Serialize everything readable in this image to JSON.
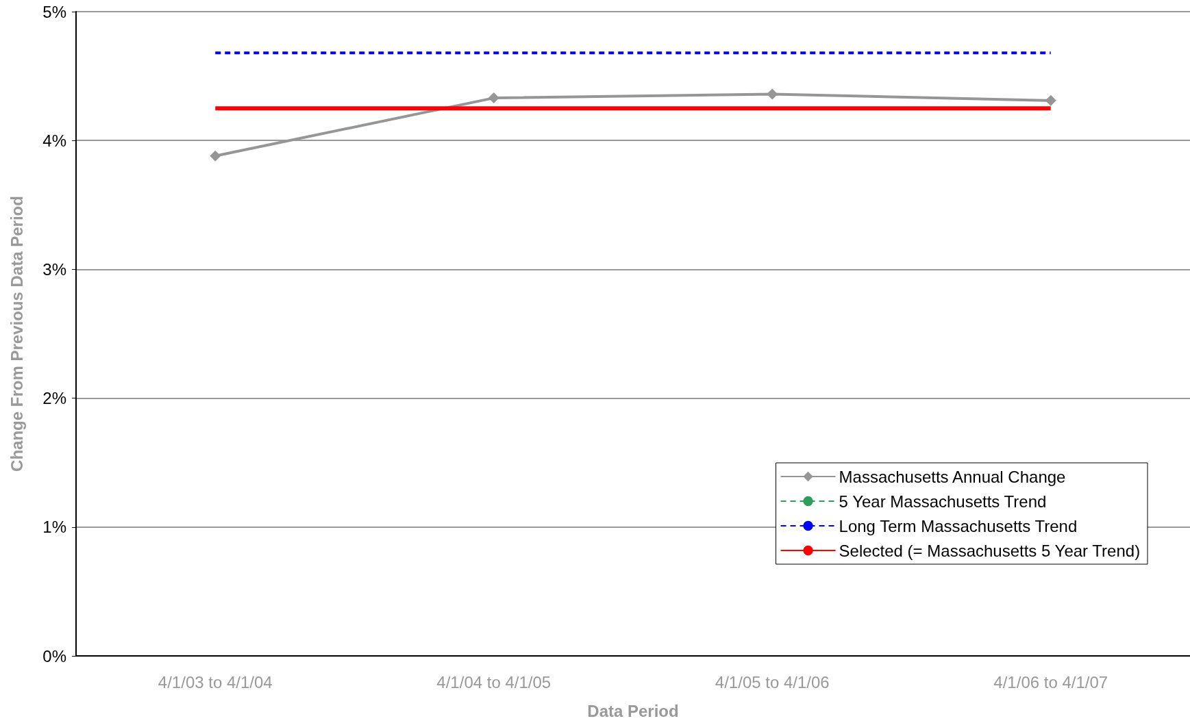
{
  "chart_data": {
    "type": "line",
    "xlabel": "Data Period",
    "ylabel": "Change From Previous Data Period",
    "categories": [
      "4/1/03 to 4/1/04",
      "4/1/04 to 4/1/05",
      "4/1/05 to 4/1/06",
      "4/1/06 to 4/1/07"
    ],
    "series": [
      {
        "name": "Massachusetts Annual Change",
        "color": "#969696",
        "values": [
          3.88,
          4.33,
          4.36,
          4.31
        ],
        "marker": "diamond",
        "line_style": "solid"
      },
      {
        "name": "5 Year Massachusetts Trend",
        "color": "#2e9e5e",
        "values": [
          null,
          null,
          null,
          null
        ],
        "marker": "none",
        "line_style": "dashed"
      },
      {
        "name": "Long Term Massachusetts Trend",
        "color": "#0000ff",
        "values": [
          4.68,
          4.68,
          4.68,
          4.68
        ],
        "marker": "none",
        "line_style": "dashed"
      },
      {
        "name": "Selected (= Massachusetts 5 Year Trend)",
        "color": "#ff0000",
        "values": [
          4.25,
          4.25,
          4.25,
          4.25
        ],
        "marker": "none",
        "line_style": "solid"
      }
    ],
    "ylim": [
      0,
      5
    ],
    "yticks": [
      {
        "value": 0,
        "label": "0%"
      },
      {
        "value": 1,
        "label": "1%"
      },
      {
        "value": 2,
        "label": "2%"
      },
      {
        "value": 3,
        "label": "3%"
      },
      {
        "value": 4,
        "label": "4%"
      },
      {
        "value": 5,
        "label": "5%"
      }
    ],
    "grid": "y",
    "legend": "bottom right"
  }
}
